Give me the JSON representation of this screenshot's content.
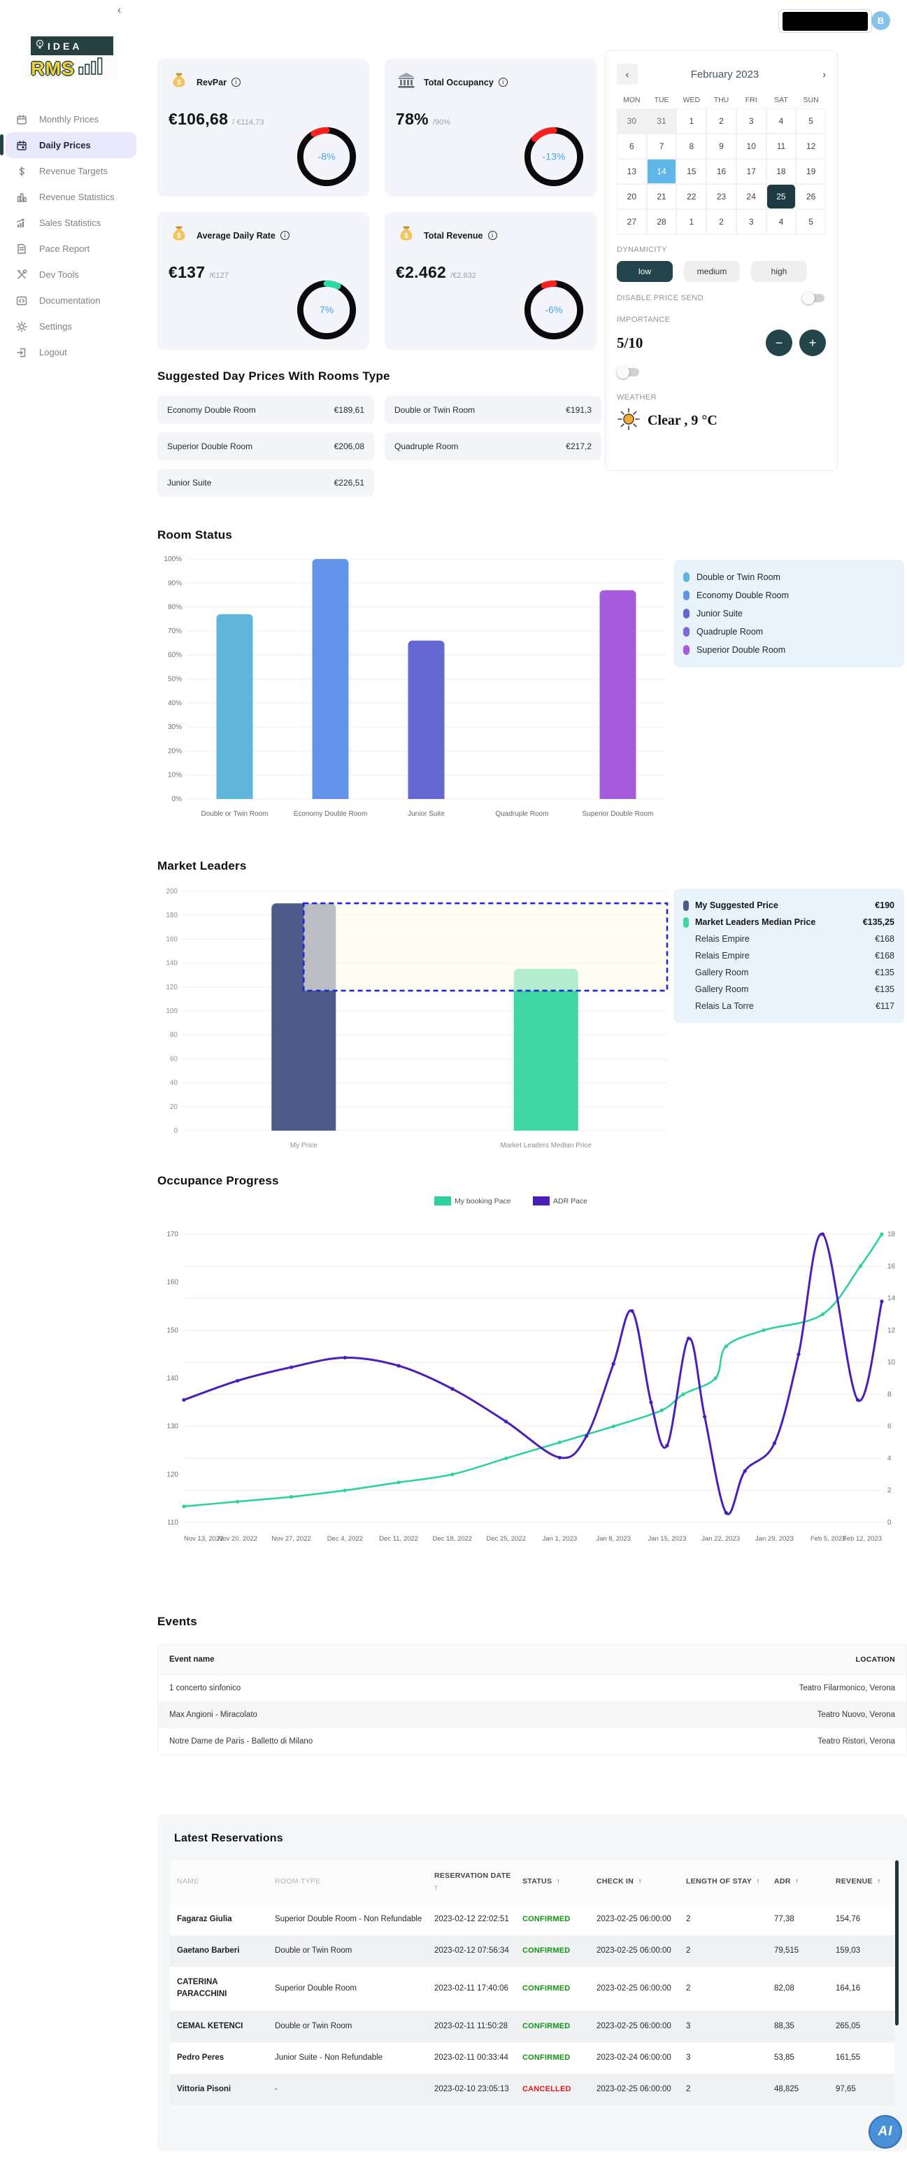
{
  "topbar": {
    "avatar_initial": "B"
  },
  "sidebar": {
    "collapse_glyph": "‹",
    "logo_line1": "IDEA",
    "logo_line2": "RMS",
    "items": [
      {
        "label": "Monthly Prices",
        "icon": "calendar-icon",
        "active": false
      },
      {
        "label": "Daily Prices",
        "icon": "calendar-day-icon",
        "active": true
      },
      {
        "label": "Revenue Targets",
        "icon": "dollar-icon",
        "active": false
      },
      {
        "label": "Revenue Statistics",
        "icon": "bar-chart-icon",
        "active": false
      },
      {
        "label": "Sales Statistics",
        "icon": "trending-chart-icon",
        "active": false
      },
      {
        "label": "Pace Report",
        "icon": "document-icon",
        "active": false
      },
      {
        "label": "Dev Tools",
        "icon": "wrench-icon",
        "active": false
      },
      {
        "label": "Documentation",
        "icon": "code-icon",
        "active": false
      },
      {
        "label": "Settings",
        "icon": "gear-icon",
        "active": false
      },
      {
        "label": "Logout",
        "icon": "logout-icon",
        "active": false
      }
    ]
  },
  "kpis": [
    {
      "title": "RevPar",
      "icon": "money-bag-icon",
      "value": "€106,68",
      "target": "/ €114,73",
      "delta_pct": -8,
      "delta_label": "-8%",
      "arc_color": "#ff1f1f"
    },
    {
      "title": "Total Occupancy",
      "icon": "bank-icon",
      "value": "78%",
      "target": "/90%",
      "delta_pct": -13,
      "delta_label": "-13%",
      "arc_color": "#ff1f1f"
    },
    {
      "title": "Average Daily Rate",
      "icon": "money-bag-icon",
      "value": "€137",
      "target": "/€127",
      "delta_pct": 7,
      "delta_label": "7%",
      "arc_color": "#2bd9a2"
    },
    {
      "title": "Total Revenue",
      "icon": "money-bag-icon",
      "value": "€2.462",
      "target": "/€2.632",
      "delta_pct": -6,
      "delta_label": "-6%",
      "arc_color": "#ff1f1f"
    }
  ],
  "calendar": {
    "month_title": "February 2023",
    "prev_glyph": "‹",
    "next_glyph": "›",
    "day_names": [
      "MON",
      "TUE",
      "WED",
      "THU",
      "FRI",
      "SAT",
      "SUN"
    ],
    "weeks": [
      [
        {
          "d": "30",
          "m": 1
        },
        {
          "d": "31",
          "m": 1
        },
        {
          "d": "1"
        },
        {
          "d": "2"
        },
        {
          "d": "3"
        },
        {
          "d": "4"
        },
        {
          "d": "5"
        }
      ],
      [
        {
          "d": "6"
        },
        {
          "d": "7"
        },
        {
          "d": "8"
        },
        {
          "d": "9"
        },
        {
          "d": "10"
        },
        {
          "d": "11"
        },
        {
          "d": "12"
        }
      ],
      [
        {
          "d": "13"
        },
        {
          "d": "14",
          "s": "blue"
        },
        {
          "d": "15"
        },
        {
          "d": "16"
        },
        {
          "d": "17"
        },
        {
          "d": "18"
        },
        {
          "d": "19"
        }
      ],
      [
        {
          "d": "20"
        },
        {
          "d": "21"
        },
        {
          "d": "22"
        },
        {
          "d": "23"
        },
        {
          "d": "24"
        },
        {
          "d": "25",
          "s": "dark"
        },
        {
          "d": "26"
        }
      ],
      [
        {
          "d": "27"
        },
        {
          "d": "28"
        },
        {
          "d": "1"
        },
        {
          "d": "2"
        },
        {
          "d": "3"
        },
        {
          "d": "4"
        },
        {
          "d": "5"
        }
      ]
    ],
    "selected_day_color": "#5fb6e8",
    "today_color": "#1e3b41"
  },
  "controls": {
    "dynamicity_label": "DYNAMICITY",
    "options": [
      "low",
      "medium",
      "high"
    ],
    "selected_option": "low",
    "disable_price_send_label": "DISABLE PRICE SEND",
    "importance_label": "IMPORTANCE",
    "importance_value": "5/10",
    "minus_glyph": "−",
    "plus_glyph": "+",
    "weather_label": "WEATHER",
    "weather_value": "Clear , 9 °C"
  },
  "suggested": {
    "title": "Suggested Day Prices With Rooms Type",
    "items": [
      {
        "name": "Economy Double Room",
        "price": "€189,61"
      },
      {
        "name": "Double or Twin Room",
        "price": "€191,3"
      },
      {
        "name": "Superior Double Room",
        "price": "€206,08"
      },
      {
        "name": "Quadruple Room",
        "price": "€217,2"
      },
      {
        "name": "Junior Suite",
        "price": "€226,51"
      }
    ]
  },
  "room_status": {
    "title": "Room Status"
  },
  "market_leaders": {
    "title": "Market Leaders",
    "legend": [
      {
        "name": "My Suggested Price",
        "value": "€190",
        "color": "#4e5a87",
        "bold": true
      },
      {
        "name": "Market Leaders Median Price",
        "value": "€135,25",
        "color": "#3ed6a3",
        "bold": true
      },
      {
        "name": "Relais Empire",
        "value": "€168"
      },
      {
        "name": "Relais Empire",
        "value": "€168"
      },
      {
        "name": "Gallery Room",
        "value": "€135"
      },
      {
        "name": "Gallery Room",
        "value": "€135"
      },
      {
        "name": "Relais La Torre",
        "value": "€117"
      }
    ]
  },
  "occupance": {
    "title": "Occupance Progress"
  },
  "events": {
    "title": "Events",
    "name_header": "Event name",
    "location_header": "LOCATION",
    "rows": [
      {
        "name": "1 concerto sinfonico",
        "location": "Teatro Filarmonico, Verona"
      },
      {
        "name": "Max Angioni - Miracolato",
        "location": "Teatro Nuovo, Verona"
      },
      {
        "name": "Notre Dame de Paris - Balletto di Milano",
        "location": "Teatro Ristori, Verona"
      }
    ]
  },
  "reservations": {
    "title": "Latest Reservations",
    "sort_glyph": "↑",
    "headers": [
      {
        "label": "NAME",
        "sortable": false
      },
      {
        "label": "ROOM TYPE",
        "sortable": false
      },
      {
        "label": "RESERVATION DATE",
        "sortable": true
      },
      {
        "label": "STATUS",
        "sortable": true
      },
      {
        "label": "CHECK IN",
        "sortable": true
      },
      {
        "label": "LENGTH OF STAY",
        "sortable": true
      },
      {
        "label": "ADR",
        "sortable": true
      },
      {
        "label": "REVENUE",
        "sortable": true
      }
    ],
    "status_colors": {
      "CONFIRMED": "#149414",
      "CANCELLED": "#e11919"
    },
    "rows": [
      [
        "Fagaraz Giulia",
        "Superior Double Room - Non Refundable",
        "2023-02-12 22:02:51",
        "CONFIRMED",
        "2023-02-25 06:00:00",
        "2",
        "77,38",
        "154,76"
      ],
      [
        "Gaetano Barberi",
        "Double or Twin Room",
        "2023-02-12 07:56:34",
        "CONFIRMED",
        "2023-02-25 06:00:00",
        "2",
        "79,515",
        "159,03"
      ],
      [
        "CATERINA PARACCHINI",
        "Superior Double Room",
        "2023-02-11 17:40:06",
        "CONFIRMED",
        "2023-02-25 06:00:00",
        "2",
        "82,08",
        "164,16"
      ],
      [
        "CEMAL KETENCI",
        "Double or Twin Room",
        "2023-02-11 11:50:28",
        "CONFIRMED",
        "2023-02-25 06:00:00",
        "3",
        "88,35",
        "265,05"
      ],
      [
        "Pedro Peres",
        "Junior Suite - Non Refundable",
        "2023-02-11 00:33:44",
        "CONFIRMED",
        "2023-02-24 06:00:00",
        "3",
        "53,85",
        "161,55"
      ],
      [
        "Vittoria Pisoni",
        "-",
        "2023-02-10 23:05:13",
        "CANCELLED",
        "2023-02-25 06:00:00",
        "2",
        "48,825",
        "97,65"
      ]
    ]
  },
  "watermark": "AI",
  "chart_data": [
    {
      "id": "room_status",
      "type": "bar",
      "title": "Room Status",
      "categories": [
        "Double or Twin Room",
        "Economy Double Room",
        "Junior Suite",
        "Quadruple Room",
        "Superior Double Room"
      ],
      "values": [
        77,
        100,
        66,
        0,
        87
      ],
      "colors": [
        "#5fb4dc",
        "#6394ea",
        "#6467d2",
        "#7a6ad9",
        "#a55bdc"
      ],
      "xlabel": "",
      "ylabel": "",
      "ylim": [
        0,
        100
      ],
      "ytick_step": 10,
      "ytick_suffix": "%",
      "grid": true,
      "legend_position": "right"
    },
    {
      "id": "market_leaders",
      "type": "bar",
      "title": "Market Leaders",
      "categories": [
        "My Price",
        "Market Leaders Median Price"
      ],
      "values": [
        190,
        135.25
      ],
      "colors": [
        "#4e5a87",
        "#3ed6a3"
      ],
      "ylim": [
        0,
        200
      ],
      "ytick_step": 20,
      "ytick_suffix": "",
      "band": {
        "from": 117,
        "to": 190,
        "fill": "#fdfce9",
        "border": "#1e27d8",
        "style": "dashed"
      },
      "grid": true
    },
    {
      "id": "occupance",
      "type": "line",
      "title": "Occupance Progress",
      "x_labels": [
        "Nov 13, 2022",
        "Nov 20, 2022",
        "Nov 27, 2022",
        "Dec 4, 2022",
        "Dec 11, 2022",
        "Dec 18, 2022",
        "Dec 25, 2022",
        "Jan 1, 2023",
        "Jan 8, 2023",
        "Jan 15, 2023",
        "Jan 22, 2023",
        "Jan 29, 2023",
        "Feb 5, 2023",
        "Feb 12, 2023"
      ],
      "left_axis": {
        "min": 110,
        "max": 170,
        "ticks": [
          110,
          120,
          130,
          140,
          150,
          160,
          170
        ]
      },
      "right_axis": {
        "min": 0,
        "max": 18,
        "ticks": [
          0,
          2,
          4,
          6,
          8,
          10,
          12,
          14,
          16,
          18
        ]
      },
      "series": [
        {
          "name": "My booking Pace",
          "color": "#2fd0a0",
          "axis": "right",
          "points": [
            [
              0,
              1
            ],
            [
              1,
              1.3
            ],
            [
              2,
              1.6
            ],
            [
              3,
              2
            ],
            [
              4,
              2.5
            ],
            [
              5,
              3
            ],
            [
              6,
              4
            ],
            [
              7,
              5
            ],
            [
              8,
              6
            ],
            [
              8.9,
              7
            ],
            [
              9.3,
              8
            ],
            [
              9.9,
              9
            ],
            [
              10.1,
              11
            ],
            [
              10.8,
              12
            ],
            [
              11.9,
              13
            ],
            [
              12.6,
              16
            ],
            [
              13,
              18
            ]
          ]
        },
        {
          "name": "ADR Pace",
          "color": "#4a1fb8",
          "axis": "left",
          "points": [
            [
              0,
              135.5
            ],
            [
              1,
              139.5
            ],
            [
              2,
              142.3
            ],
            [
              3,
              144.3
            ],
            [
              4,
              142.6
            ],
            [
              5,
              137.8
            ],
            [
              6,
              131
            ],
            [
              7,
              123.5
            ],
            [
              7.5,
              128
            ],
            [
              8,
              143
            ],
            [
              8.35,
              154
            ],
            [
              8.7,
              135
            ],
            [
              9,
              126
            ],
            [
              9.4,
              148.3
            ],
            [
              9.7,
              132
            ],
            [
              10.1,
              112
            ],
            [
              10.45,
              120.7
            ],
            [
              11,
              126.5
            ],
            [
              11.45,
              145
            ],
            [
              11.9,
              170
            ],
            [
              12.55,
              135.5
            ],
            [
              13,
              156
            ]
          ]
        }
      ],
      "grid": true,
      "legend_position": "top"
    }
  ]
}
